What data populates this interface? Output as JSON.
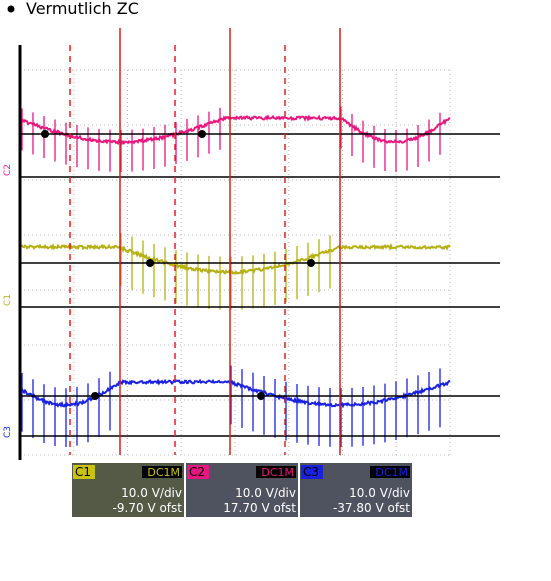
{
  "header": {
    "title": "Vermutlich ZC"
  },
  "side_labels": [
    "C2",
    "C1",
    "C3"
  ],
  "channels": [
    {
      "name": "C1",
      "coupling": "DC1M",
      "scale": "10.0 V/div",
      "offset": "-9.70 V ofst"
    },
    {
      "name": "C2",
      "coupling": "DC1M",
      "scale": "10.0 V/div",
      "offset": "17.70 V ofst"
    },
    {
      "name": "C3",
      "coupling": "DC1M",
      "scale": "10.0 V/div",
      "offset": "-37.80 V ofst"
    }
  ]
}
